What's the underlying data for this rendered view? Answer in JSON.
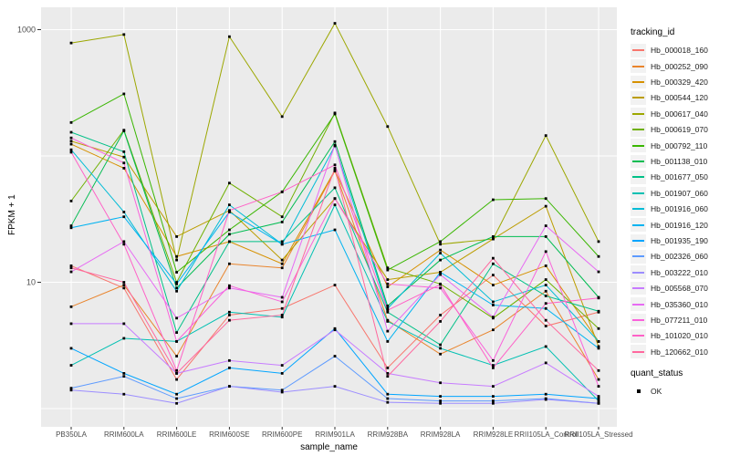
{
  "figure": {
    "background": "#FFFFFF",
    "panel_background": "#EBEBEB",
    "gridline_color": "#FFFFFF",
    "tick_color": "#333333",
    "tick_label_color": "#4D4D4D",
    "axis_title_color": "#000000",
    "point_color": "#000000",
    "legend_key_background": "#F2F2F2"
  },
  "chart_data": {
    "type": "line",
    "title": "",
    "xlabel": "sample_name",
    "ylabel": "FPKM + 1",
    "y_scale": "log10",
    "ylim": [
      0.72,
      1500
    ],
    "y_tick_labels": [
      "1000",
      "10"
    ],
    "y_tick_values": [
      1000,
      10
    ],
    "y_gridline_values": [
      1000,
      100,
      10,
      1
    ],
    "grid": "major-white-on-grey",
    "legend_position": "right",
    "point_marker": "small-black-square",
    "categories": [
      "PB350LA",
      "RRIM600LA",
      "RRIM600LE",
      "RRIM600SE",
      "RRIM600PE",
      "RRIM901LA",
      "RRIM928BA",
      "RRIM928LA",
      "RRIM928LE",
      "RRII105LA_Control",
      "RRII105LA_Stressed"
    ],
    "series": [
      {
        "name": "Hb_000018_160",
        "color": "#F8766D",
        "values": [
          13.5,
          9.0,
          1.7,
          5.5,
          6.2,
          9.5,
          2.1,
          5.5,
          11.4,
          4.5,
          5.8
        ]
      },
      {
        "name": "Hb_000252_090",
        "color": "#E9842C",
        "values": [
          6.4,
          9.5,
          2.6,
          14,
          13,
          76,
          5.0,
          2.7,
          4.2,
          8.5,
          1.7
        ]
      },
      {
        "name": "Hb_000329_420",
        "color": "#D69100",
        "values": [
          124,
          80,
          16,
          21,
          14,
          77,
          9.2,
          18,
          9.5,
          13.5,
          3.4
        ]
      },
      {
        "name": "Hb_000544_120",
        "color": "#BC9D00",
        "values": [
          131,
          98,
          23,
          37,
          15,
          46,
          10.5,
          12,
          22,
          40,
          3.1
        ]
      },
      {
        "name": "Hb_000617_040",
        "color": "#9CA700",
        "values": [
          784,
          915,
          15,
          880,
          205,
          1122,
          171,
          20,
          22,
          145,
          21
        ]
      },
      {
        "name": "Hb_000619_070",
        "color": "#6FB000",
        "values": [
          44,
          160,
          10,
          61,
          33,
          219,
          13,
          9.7,
          5.2,
          10.5,
          4.3
        ]
      },
      {
        "name": "Hb_000792_110",
        "color": "#39B600",
        "values": [
          184,
          310,
          12,
          26,
          52,
          215,
          12.5,
          21,
          45,
          46,
          16
        ]
      },
      {
        "name": "Hb_001138_010",
        "color": "#00BC51",
        "values": [
          28,
          158,
          9.0,
          24,
          30,
          130,
          6.5,
          15,
          23,
          23,
          7.6
        ]
      },
      {
        "name": "Hb_001677_050",
        "color": "#00C087",
        "values": [
          154,
          108,
          4.0,
          21,
          21,
          56,
          5.8,
          3.2,
          14,
          7.8,
          5.9
        ]
      },
      {
        "name": "Hb_001907_060",
        "color": "#00C0B2",
        "values": [
          2.2,
          3.6,
          3.4,
          5.8,
          5.3,
          41,
          4.9,
          3.0,
          2.2,
          3.1,
          1.15
        ]
      },
      {
        "name": "Hb_001916_060",
        "color": "#00BCD6",
        "values": [
          112,
          36,
          8.5,
          41,
          20,
          120,
          6.2,
          17,
          7.0,
          9.5,
          3.4
        ]
      },
      {
        "name": "Hb_001916_120",
        "color": "#00B3F1",
        "values": [
          27,
          33,
          9.7,
          36,
          20,
          26,
          3.4,
          12,
          6.6,
          6.2,
          3.0
        ]
      },
      {
        "name": "Hb_001935_190",
        "color": "#00A5FF",
        "values": [
          3.0,
          1.9,
          1.3,
          2.1,
          1.9,
          4.3,
          1.3,
          1.25,
          1.25,
          1.3,
          1.2
        ]
      },
      {
        "name": "Hb_002326_060",
        "color": "#5E9BFF",
        "values": [
          1.45,
          1.8,
          1.2,
          1.5,
          1.4,
          2.6,
          1.2,
          1.15,
          1.15,
          1.2,
          1.1
        ]
      },
      {
        "name": "Hb_003222_010",
        "color": "#9C8DFF",
        "values": [
          1.4,
          1.3,
          1.1,
          1.5,
          1.35,
          1.5,
          1.12,
          1.1,
          1.1,
          1.18,
          1.1
        ]
      },
      {
        "name": "Hb_005568_070",
        "color": "#C77CFF",
        "values": [
          4.7,
          4.7,
          1.9,
          2.4,
          2.2,
          4.2,
          1.9,
          1.6,
          1.5,
          2.3,
          1.25
        ]
      },
      {
        "name": "Hb_035360_010",
        "color": "#E76BF3",
        "values": [
          12.1,
          21,
          5.2,
          9.0,
          7.6,
          122,
          4.1,
          11.5,
          5.3,
          28,
          12.1
        ]
      },
      {
        "name": "Hb_077211_010",
        "color": "#FA62DB",
        "values": [
          139,
          88,
          3.4,
          9.4,
          7.0,
          46,
          9.7,
          9.0,
          2.4,
          17.5,
          1.5
        ]
      },
      {
        "name": "Hb_101020_010",
        "color": "#FF61C7",
        "values": [
          107,
          20,
          2.0,
          37,
          52,
          85,
          6.0,
          9.6,
          2.1,
          6.8,
          7.5
        ]
      },
      {
        "name": "Hb_120662_010",
        "color": "#FF689E",
        "values": [
          13,
          10,
          1.9,
          5.0,
          5.5,
          80,
          1.8,
          4.9,
          15.5,
          5.0,
          2.0
        ]
      }
    ],
    "legend": {
      "series_title": "tracking_id",
      "status_title": "quant_status",
      "status_items": [
        {
          "label": "OK",
          "marker": "black-square"
        }
      ]
    }
  }
}
